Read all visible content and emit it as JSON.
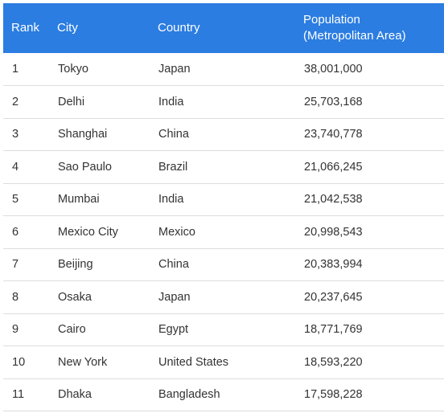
{
  "table": {
    "headers": {
      "rank": "Rank",
      "city": "City",
      "country": "Country",
      "population_line1": "Population",
      "population_line2": "(Metropolitan Area)"
    },
    "rows": [
      {
        "rank": "1",
        "city": "Tokyo",
        "country": "Japan",
        "population": "38,001,000"
      },
      {
        "rank": "2",
        "city": "Delhi",
        "country": "India",
        "population": "25,703,168"
      },
      {
        "rank": "3",
        "city": "Shanghai",
        "country": "China",
        "population": "23,740,778"
      },
      {
        "rank": "4",
        "city": "Sao Paulo",
        "country": "Brazil",
        "population": "21,066,245"
      },
      {
        "rank": "5",
        "city": "Mumbai",
        "country": "India",
        "population": "21,042,538"
      },
      {
        "rank": "6",
        "city": "Mexico City",
        "country": "Mexico",
        "population": "20,998,543"
      },
      {
        "rank": "7",
        "city": "Beijing",
        "country": "China",
        "population": "20,383,994"
      },
      {
        "rank": "8",
        "city": "Osaka",
        "country": "Japan",
        "population": "20,237,645"
      },
      {
        "rank": "9",
        "city": "Cairo",
        "country": "Egypt",
        "population": "18,771,769"
      },
      {
        "rank": "10",
        "city": "New York",
        "country": "United States",
        "population": "18,593,220"
      },
      {
        "rank": "11",
        "city": "Dhaka",
        "country": "Bangladesh",
        "population": "17,598,228"
      }
    ],
    "colors": {
      "header_bg": "#2b7de1",
      "header_text": "#ffffff",
      "row_border": "#dddddd",
      "cell_text": "#333333"
    }
  }
}
